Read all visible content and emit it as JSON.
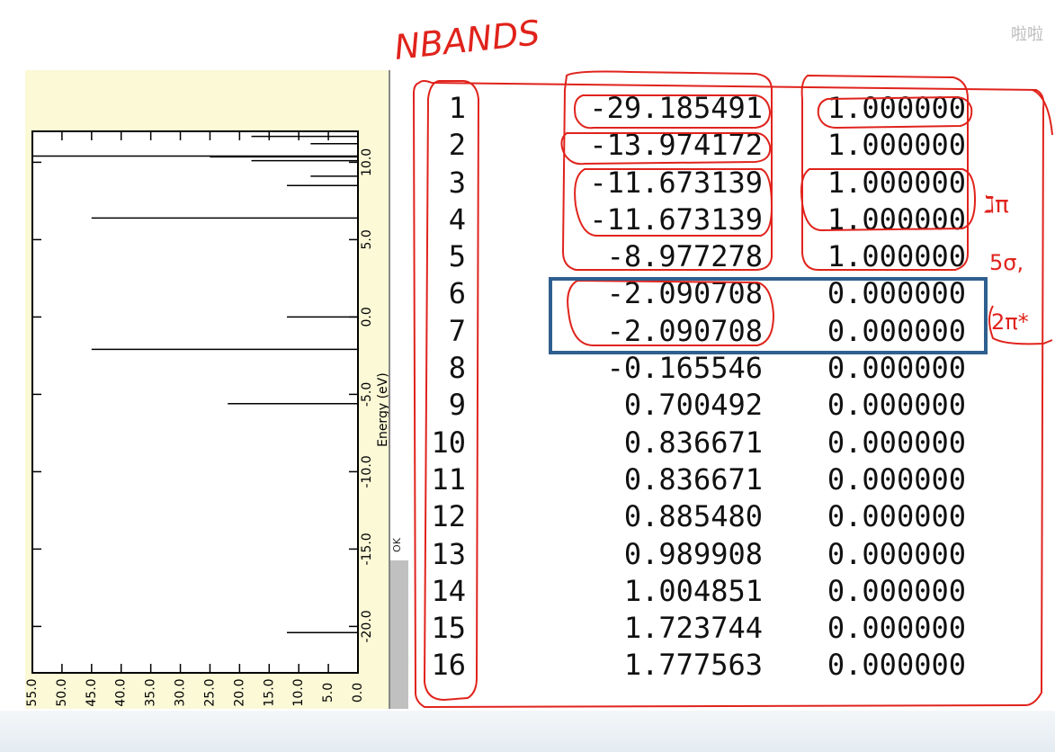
{
  "corner_watermark": "啦啦",
  "ok_label": "OK",
  "chart_data": {
    "type": "line",
    "ylabel": "Energy (eV)",
    "yticks": [
      "10.0",
      "5.0",
      "0.0",
      "-5.0",
      "-10.0",
      "-15.0",
      "-20.0"
    ],
    "xticks": [
      "55.0",
      "50.0",
      "45.0",
      "40.0",
      "35.0",
      "30.0",
      "25.0",
      "20.0",
      "15.0",
      "10.0",
      "5.0",
      "0.0"
    ],
    "ylim": [
      -23,
      12
    ],
    "xlim": [
      0,
      55
    ],
    "lines": [
      {
        "energy": 11.67,
        "x": 18
      },
      {
        "energy": 11.2,
        "x": 8
      },
      {
        "energy": 10.4,
        "x": 55
      },
      {
        "energy": 10.35,
        "x": 25
      },
      {
        "energy": 10.1,
        "x": 18
      },
      {
        "energy": 9.1,
        "x": 8
      },
      {
        "energy": 8.5,
        "x": 12
      },
      {
        "energy": 6.4,
        "x": 45
      },
      {
        "energy": 0.0,
        "x": 12
      },
      {
        "energy": -2.09,
        "x": 45
      },
      {
        "energy": -5.6,
        "x": 22
      },
      {
        "energy": -20.4,
        "x": 12
      }
    ]
  },
  "table": {
    "rows": [
      {
        "index": "1",
        "energy": "-29.185491",
        "occupation": "1.000000"
      },
      {
        "index": "2",
        "energy": "-13.974172",
        "occupation": "1.000000"
      },
      {
        "index": "3",
        "energy": "-11.673139",
        "occupation": "1.000000"
      },
      {
        "index": "4",
        "energy": "-11.673139",
        "occupation": "1.000000"
      },
      {
        "index": "5",
        "energy": "-8.977278",
        "occupation": "1.000000"
      },
      {
        "index": "6",
        "energy": "-2.090708",
        "occupation": "0.000000"
      },
      {
        "index": "7",
        "energy": "-2.090708",
        "occupation": "0.000000"
      },
      {
        "index": "8",
        "energy": "-0.165546",
        "occupation": "0.000000"
      },
      {
        "index": "9",
        "energy": "0.700492",
        "occupation": "0.000000"
      },
      {
        "index": "10",
        "energy": "0.836671",
        "occupation": "0.000000"
      },
      {
        "index": "11",
        "energy": "0.836671",
        "occupation": "0.000000"
      },
      {
        "index": "12",
        "energy": "0.885480",
        "occupation": "0.000000"
      },
      {
        "index": "13",
        "energy": "0.989908",
        "occupation": "0.000000"
      },
      {
        "index": "14",
        "energy": "1.004851",
        "occupation": "0.000000"
      },
      {
        "index": "15",
        "energy": "1.723744",
        "occupation": "0.000000"
      },
      {
        "index": "16",
        "energy": "1.777563",
        "occupation": "0.000000"
      }
    ]
  },
  "annotations": {
    "nband": "NBANDS",
    "pi": "ℷπ",
    "sigma": "5σ,",
    "pi_star": "2π*"
  },
  "colors": {
    "annotation_red": "#e0231c",
    "highlight_blue": "#2f5f8f",
    "panel_yellow": "#fbf9d6"
  }
}
